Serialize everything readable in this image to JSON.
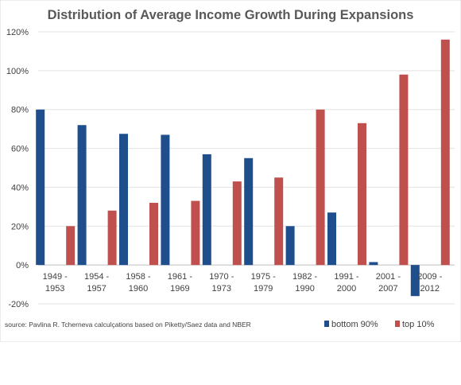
{
  "chart_data": {
    "type": "bar",
    "title": "Distribution of Average Income Growth During Expansions",
    "xlabel": "",
    "ylabel": "",
    "categories": [
      [
        "1949 -",
        "1953"
      ],
      [
        "1954 -",
        "1957"
      ],
      [
        "1958 -",
        "1960"
      ],
      [
        "1961 -",
        "1969"
      ],
      [
        "1970 -",
        "1973"
      ],
      [
        "1975 -",
        "1979"
      ],
      [
        "1982 -",
        "1990"
      ],
      [
        "1991 -",
        "2000"
      ],
      [
        "2001 -",
        "2007"
      ],
      [
        "2009 -",
        "2012"
      ]
    ],
    "series": [
      {
        "name": "bottom 90%",
        "color": "#1f4e8c",
        "values": [
          80,
          72,
          67.5,
          67,
          57,
          55,
          20,
          27,
          1.5,
          -16
        ]
      },
      {
        "name": "top 10%",
        "color": "#c0504d",
        "values": [
          20,
          28,
          32,
          33,
          43,
          45,
          80,
          73,
          98,
          116
        ]
      }
    ],
    "ylim": [
      -20,
      120
    ],
    "yticks": [
      -20,
      0,
      20,
      40,
      60,
      80,
      100,
      120
    ],
    "ytick_suffix": "%",
    "grid": true,
    "legend_position": "bottom-right",
    "source": "source: Pavlina R. Tcherneva calculçations based on Piketty/Saez data and NBER"
  }
}
